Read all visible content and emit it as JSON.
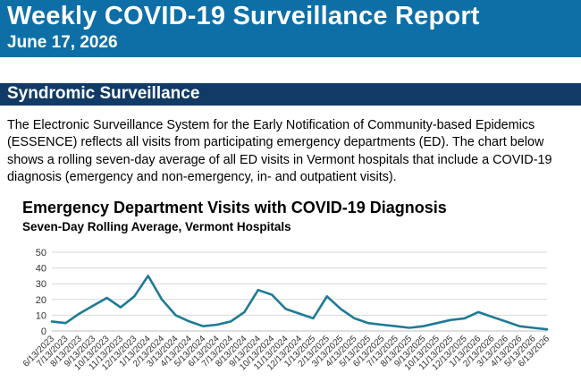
{
  "header": {
    "title": "Weekly COVID-19 Surveillance Report",
    "date": "June 17, 2026"
  },
  "section": {
    "title": "Syndromic Surveillance"
  },
  "body": {
    "paragraph": "The Electronic Surveillance System for the Early Notification of Community-based Epidemics (ESSENCE) reflects all visits from participating emergency departments (ED). The chart below shows a rolling seven-day average of all ED visits in Vermont hospitals that include a COVID-19 diagnosis (emergency and non-emergency, in- and outpatient visits)."
  },
  "colors": {
    "header_bg": "#0d6fa6",
    "section_bg": "#113b66",
    "line": "#1f7a96",
    "grid": "#d9d9d9"
  },
  "chart_data": {
    "type": "line",
    "title": "Emergency Department Visits with COVID-19 Diagnosis",
    "subtitle": "Seven-Day Rolling Average, Vermont Hospitals",
    "xlabel": "",
    "ylabel": "",
    "ylim": [
      0,
      50
    ],
    "yticks": [
      0,
      10,
      20,
      30,
      40,
      50
    ],
    "grid": true,
    "x_tick_labels": [
      "6/13/2023",
      "7/13/2023",
      "8/13/2023",
      "9/13/2023",
      "10/13/2023",
      "11/13/2023",
      "12/13/2023",
      "1/13/2024",
      "2/13/2024",
      "3/13/2024",
      "4/13/2024",
      "5/13/2024",
      "6/13/2024",
      "7/13/2024",
      "8/13/2024",
      "9/13/2024",
      "10/13/2024",
      "11/13/2024",
      "12/13/2024",
      "1/13/2025",
      "2/13/2025",
      "3/13/2025",
      "4/13/2025",
      "5/13/2025",
      "6/13/2025",
      "7/13/2025",
      "8/13/2025",
      "9/13/2025",
      "10/13/2025",
      "11/13/2025",
      "12/13/2025",
      "1/13/2026",
      "2/13/2026",
      "3/13/2026",
      "4/13/2026",
      "5/13/2026",
      "6/13/2026"
    ],
    "series": [
      {
        "x": [
          "6/13/2023",
          "7/13/2023",
          "8/13/2023",
          "9/13/2023",
          "10/13/2023",
          "11/13/2023",
          "12/13/2023",
          "1/13/2024",
          "2/13/2024",
          "3/13/2024",
          "4/13/2024",
          "5/13/2024",
          "6/13/2024",
          "7/13/2024",
          "8/13/2024",
          "9/13/2024",
          "10/13/2024",
          "11/13/2024",
          "12/13/2024",
          "1/13/2025",
          "2/13/2025",
          "3/13/2025",
          "4/13/2025",
          "5/13/2025",
          "6/13/2025",
          "7/13/2025",
          "8/13/2025",
          "9/13/2025",
          "10/13/2025",
          "11/13/2025",
          "12/13/2025",
          "1/13/2026",
          "2/13/2026",
          "3/13/2026",
          "4/13/2026",
          "5/13/2026",
          "6/13/2026"
        ],
        "values": [
          6,
          5,
          11,
          16,
          21,
          15,
          22,
          35,
          20,
          10,
          6,
          3,
          4,
          6,
          12,
          26,
          23,
          14,
          11,
          8,
          22,
          14,
          8,
          5,
          4,
          3,
          2,
          3,
          5,
          7,
          8,
          12,
          9,
          6,
          3,
          2,
          1
        ]
      }
    ]
  }
}
